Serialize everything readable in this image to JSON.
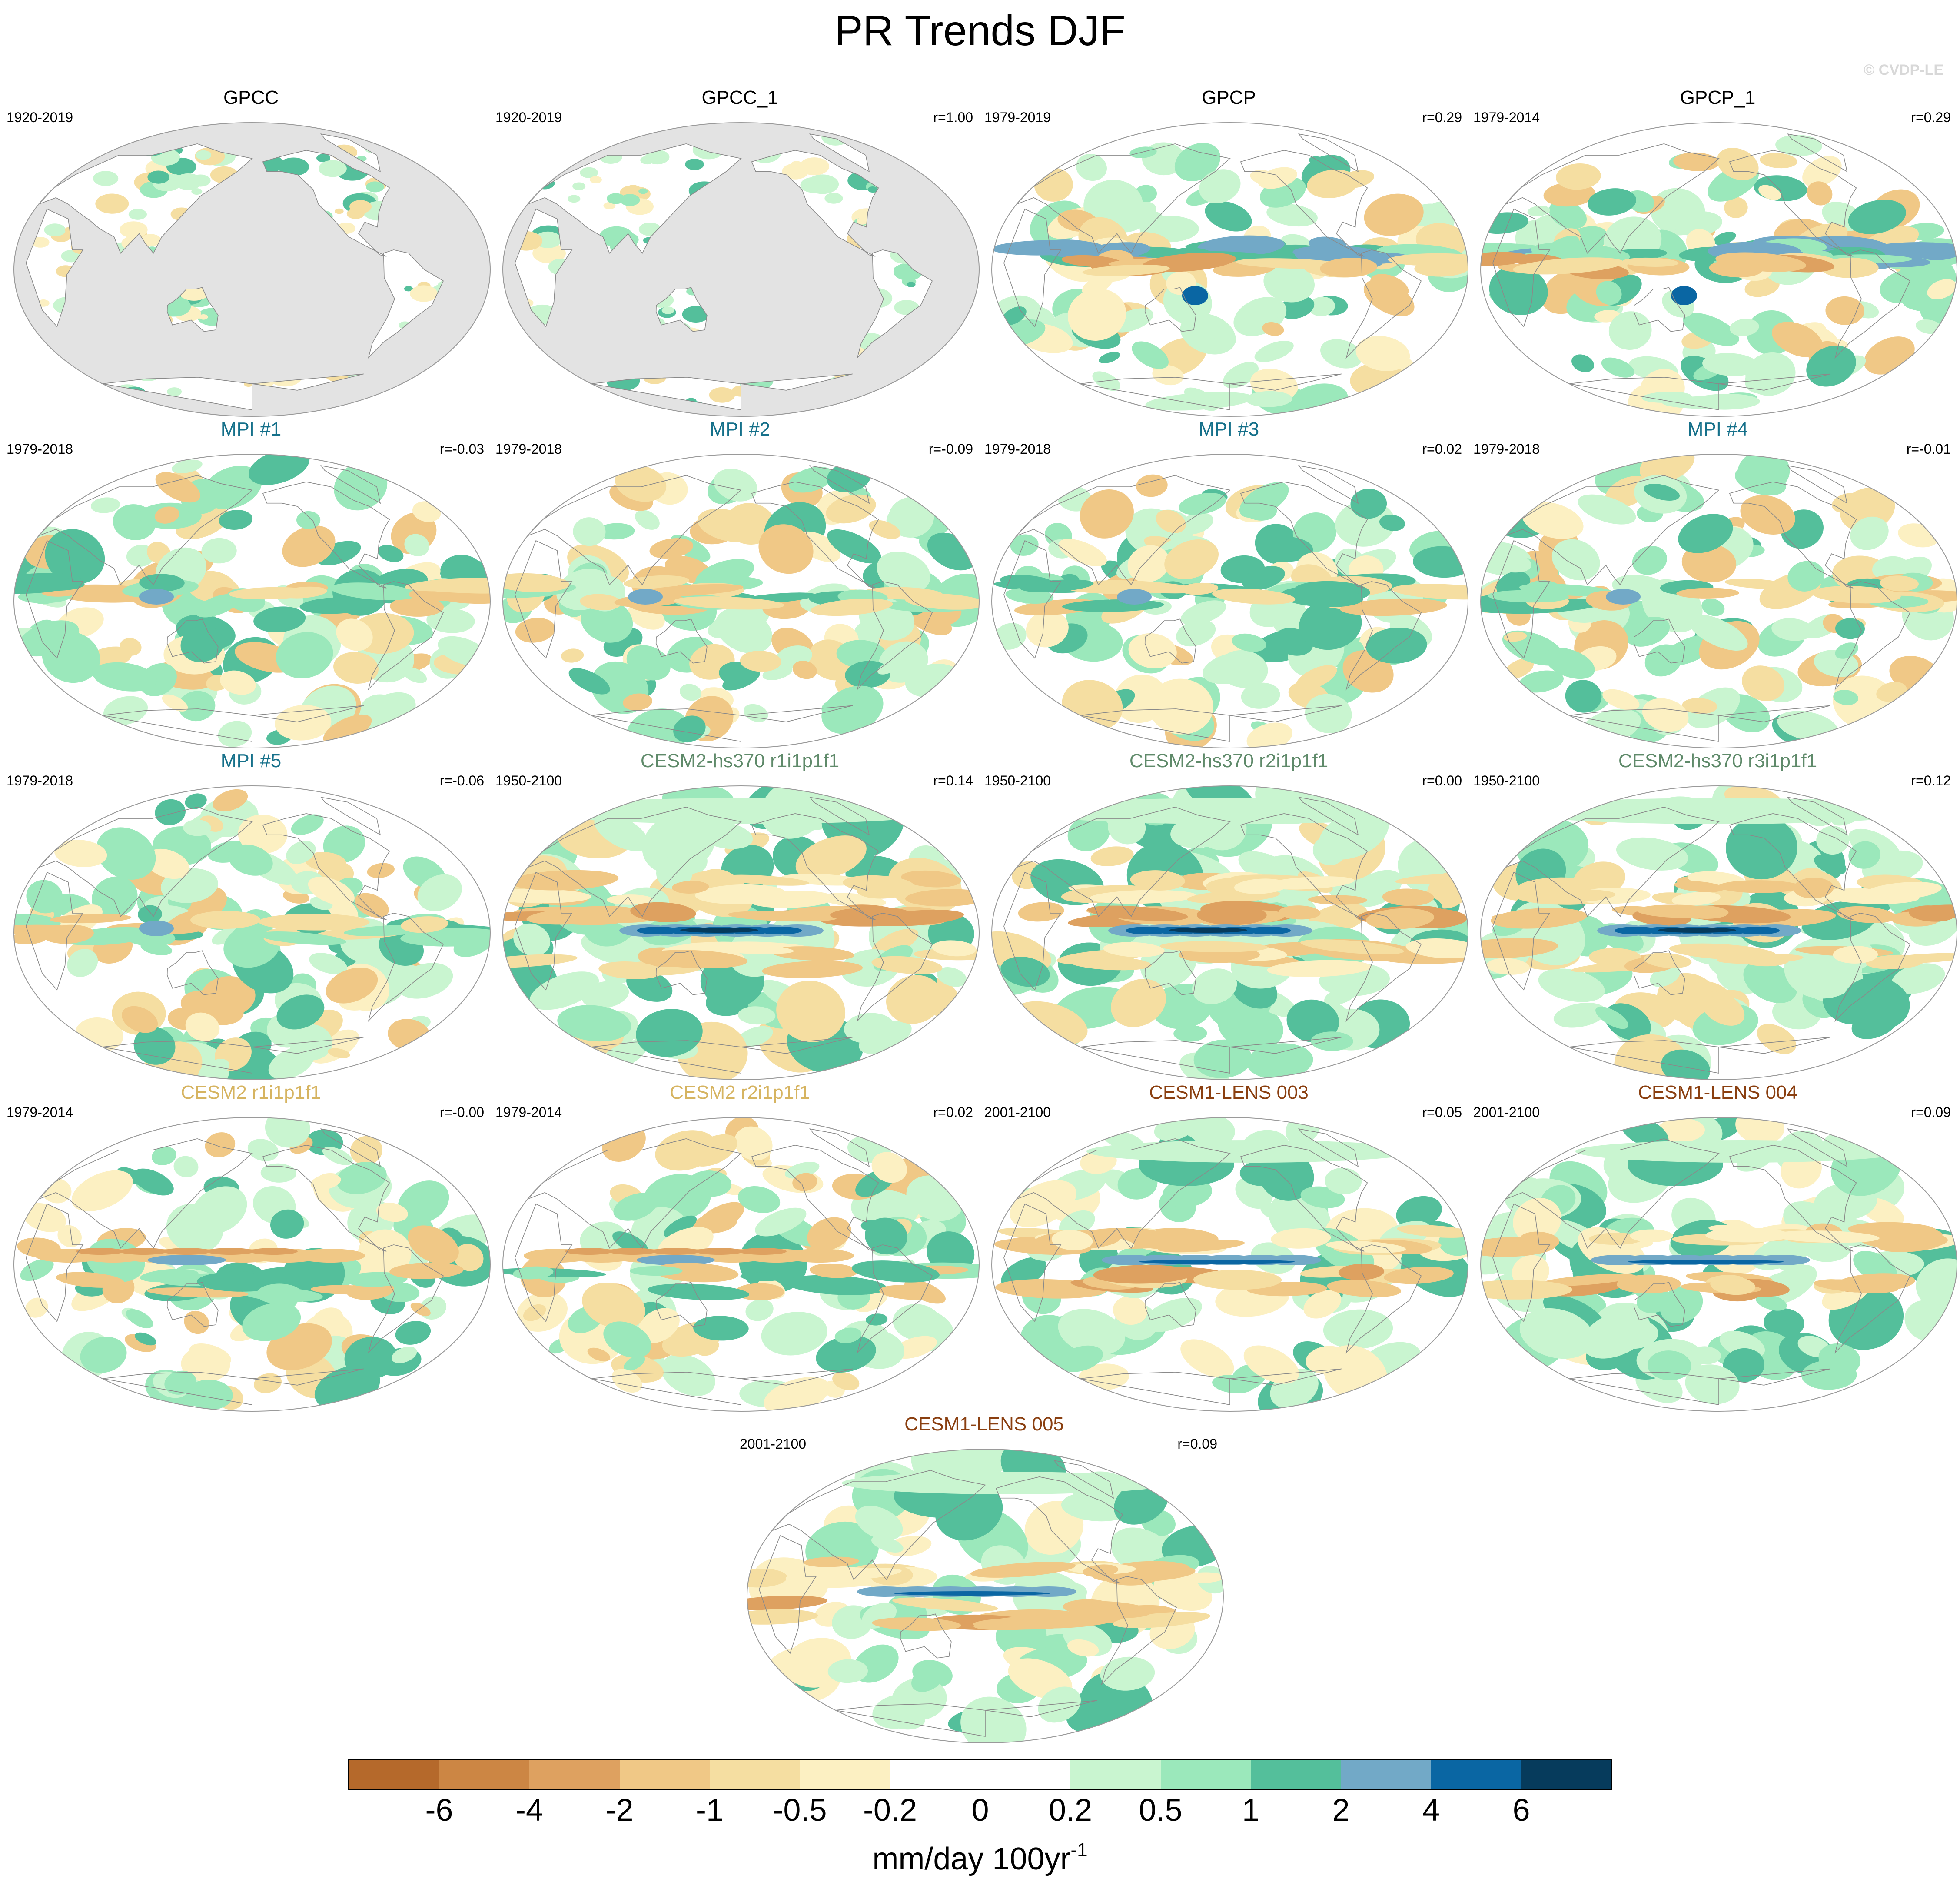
{
  "figure": {
    "title": "PR Trends DJF",
    "watermark": "© CVDP-LE"
  },
  "colors": {
    "land_mask": "#e3e3e3",
    "coastline": "#8a8a8a",
    "obs_title": "#000000",
    "mpi_title": "#15708a",
    "cesm2_hs370_title": "#5f8a6a",
    "cesm2_title": "#d6b461",
    "cesm1_lens_title": "#8a3f10"
  },
  "panels": [
    {
      "title": "GPCC",
      "period": "1920-2019",
      "corr": "",
      "title_color": "#000000",
      "land_only": true,
      "pattern": "land"
    },
    {
      "title": "GPCC_1",
      "period": "1920-2019",
      "corr": "r=1.00",
      "title_color": "#000000",
      "land_only": true,
      "pattern": "land"
    },
    {
      "title": "GPCP",
      "period": "1979-2019",
      "corr": "r=0.29",
      "title_color": "#000000",
      "land_only": false,
      "pattern": "obs"
    },
    {
      "title": "GPCP_1",
      "period": "1979-2014",
      "corr": "r=0.29",
      "title_color": "#000000",
      "land_only": false,
      "pattern": "obs"
    },
    {
      "title": "MPI #1",
      "period": "1979-2018",
      "corr": "r=-0.03",
      "title_color": "#15708a",
      "land_only": false,
      "pattern": "mpi"
    },
    {
      "title": "MPI #2",
      "period": "1979-2018",
      "corr": "r=-0.09",
      "title_color": "#15708a",
      "land_only": false,
      "pattern": "mpi"
    },
    {
      "title": "MPI #3",
      "period": "1979-2018",
      "corr": "r=0.02",
      "title_color": "#15708a",
      "land_only": false,
      "pattern": "mpi"
    },
    {
      "title": "MPI #4",
      "period": "1979-2018",
      "corr": "r=-0.01",
      "title_color": "#15708a",
      "land_only": false,
      "pattern": "mpi"
    },
    {
      "title": "MPI #5",
      "period": "1979-2018",
      "corr": "r=-0.06",
      "title_color": "#15708a",
      "land_only": false,
      "pattern": "mpi"
    },
    {
      "title": "CESM2-hs370 r1i1p1f1",
      "period": "1950-2100",
      "corr": "r=0.14",
      "title_color": "#5f8a6a",
      "land_only": false,
      "pattern": "hs370"
    },
    {
      "title": "CESM2-hs370 r2i1p1f1",
      "period": "1950-2100",
      "corr": "r=0.00",
      "title_color": "#5f8a6a",
      "land_only": false,
      "pattern": "hs370"
    },
    {
      "title": "CESM2-hs370 r3i1p1f1",
      "period": "1950-2100",
      "corr": "r=0.12",
      "title_color": "#5f8a6a",
      "land_only": false,
      "pattern": "hs370"
    },
    {
      "title": "CESM2 r1i1p1f1",
      "period": "1979-2014",
      "corr": "r=-0.00",
      "title_color": "#d6b461",
      "land_only": false,
      "pattern": "cesm2"
    },
    {
      "title": "CESM2 r2i1p1f1",
      "period": "1979-2014",
      "corr": "r=0.02",
      "title_color": "#d6b461",
      "land_only": false,
      "pattern": "cesm2"
    },
    {
      "title": "CESM1-LENS 003",
      "period": "2001-2100",
      "corr": "r=0.05",
      "title_color": "#8a3f10",
      "land_only": false,
      "pattern": "lens"
    },
    {
      "title": "CESM1-LENS 004",
      "period": "2001-2100",
      "corr": "r=0.09",
      "title_color": "#8a3f10",
      "land_only": false,
      "pattern": "lens"
    },
    {
      "title": "CESM1-LENS 005",
      "period": "2001-2100",
      "corr": "r=0.09",
      "title_color": "#8a3f10",
      "land_only": false,
      "pattern": "lens"
    }
  ],
  "colorbar": {
    "colors": [
      "#b5692b",
      "#cc8644",
      "#dea160",
      "#f0c886",
      "#f5dea1",
      "#fcf0c2",
      "#ffffff",
      "#ffffff",
      "#c9f5d0",
      "#9be8bb",
      "#54bf9b",
      "#72a9c7",
      "#0a66a3",
      "#063b5c"
    ],
    "tick_labels": [
      "-6",
      "-4",
      "-2",
      "-1",
      "-0.5",
      "-0.2",
      "0",
      "0.2",
      "0.5",
      "1",
      "2",
      "4",
      "6"
    ],
    "units_text": "mm/day 100yr",
    "units_exponent": "-1"
  }
}
